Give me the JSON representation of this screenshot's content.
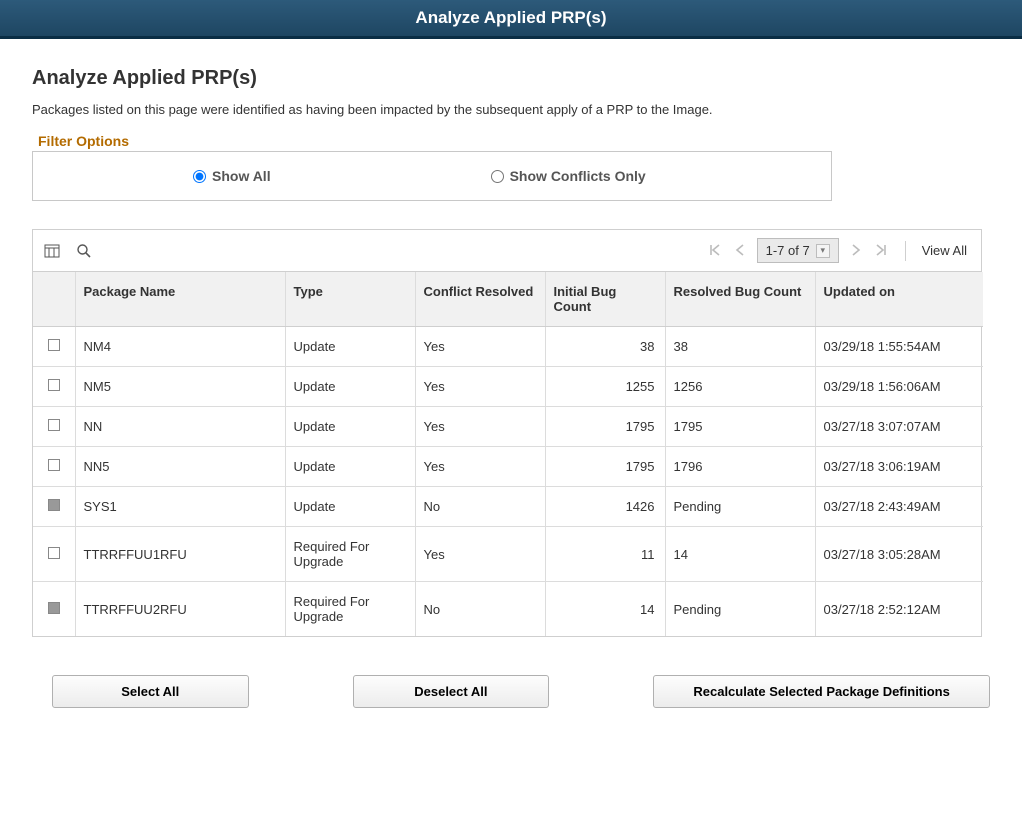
{
  "header": {
    "title": "Analyze Applied PRP(s)"
  },
  "page": {
    "title": "Analyze Applied PRP(s)",
    "description": "Packages listed on this page were identified as having been impacted by the subsequent apply of a PRP to the Image."
  },
  "filter": {
    "legend": "Filter Options",
    "show_all_label": "Show All",
    "show_conflicts_label": "Show Conflicts Only",
    "selected": "show_all"
  },
  "grid": {
    "range_label": "1-7 of 7",
    "view_all_label": "View All",
    "columns": {
      "name": "Package Name",
      "type": "Type",
      "conflict": "Conflict Resolved",
      "initial": "Initial Bug Count",
      "resolved": "Resolved Bug Count",
      "updated": "Updated on"
    },
    "rows": [
      {
        "checked": false,
        "name": "NM4",
        "type": "Update",
        "conflict": "Yes",
        "initial": "38",
        "resolved": "38",
        "updated": "03/29/18  1:55:54AM"
      },
      {
        "checked": false,
        "name": "NM5",
        "type": "Update",
        "conflict": "Yes",
        "initial": "1255",
        "resolved": "1256",
        "updated": "03/29/18  1:56:06AM"
      },
      {
        "checked": false,
        "name": "NN",
        "type": "Update",
        "conflict": "Yes",
        "initial": "1795",
        "resolved": "1795",
        "updated": "03/27/18  3:07:07AM"
      },
      {
        "checked": false,
        "name": "NN5",
        "type": "Update",
        "conflict": "Yes",
        "initial": "1795",
        "resolved": "1796",
        "updated": "03/27/18  3:06:19AM"
      },
      {
        "checked": true,
        "name": "SYS1",
        "type": "Update",
        "conflict": "No",
        "initial": "1426",
        "resolved": "Pending",
        "updated": "03/27/18  2:43:49AM"
      },
      {
        "checked": false,
        "name": "TTRRFFUU1RFU",
        "type": "Required For Upgrade",
        "conflict": "Yes",
        "initial": "11",
        "resolved": "14",
        "updated": "03/27/18  3:05:28AM"
      },
      {
        "checked": true,
        "name": "TTRRFFUU2RFU",
        "type": "Required For Upgrade",
        "conflict": "No",
        "initial": "14",
        "resolved": "Pending",
        "updated": "03/27/18  2:52:12AM"
      }
    ]
  },
  "actions": {
    "select_all": "Select All",
    "deselect_all": "Deselect All",
    "recalculate": "Recalculate Selected Package Definitions"
  },
  "colors": {
    "header_bg_top": "#2d5a7a",
    "header_bg_bottom": "#1e4662",
    "legend_color": "#b36b00",
    "border": "#cfcfcf",
    "th_bg": "#f1f1f1"
  }
}
